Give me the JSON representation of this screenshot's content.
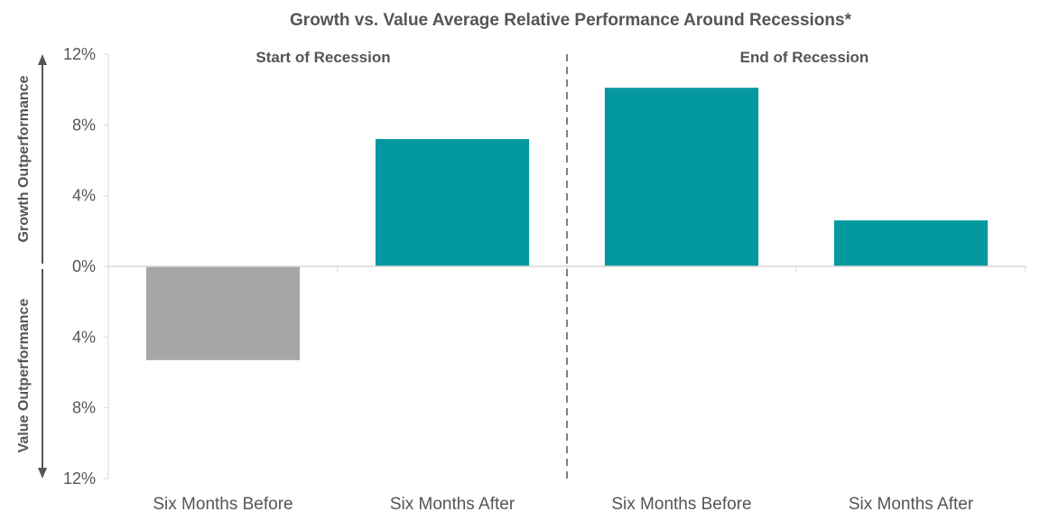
{
  "chart_data": {
    "type": "bar",
    "title": "Growth vs. Value Average Relative Performance Around Recessions*",
    "categories": [
      "Six Months Before",
      "Six Months After",
      "Six Months Before",
      "Six Months After"
    ],
    "values": [
      -5.3,
      7.2,
      10.1,
      2.6
    ],
    "ylim": [
      -12,
      12
    ],
    "yticks": [
      {
        "value": 12,
        "label": "12%"
      },
      {
        "value": 8,
        "label": "8%"
      },
      {
        "value": 4,
        "label": "4%"
      },
      {
        "value": 0,
        "label": "0%"
      },
      {
        "value": -4,
        "label": "4%"
      },
      {
        "value": -8,
        "label": "8%"
      },
      {
        "value": -12,
        "label": "12%"
      }
    ],
    "sections": [
      {
        "label": "Start of Recession"
      },
      {
        "label": "End of Recession"
      }
    ],
    "side_labels": {
      "upper": "Growth Outperformance",
      "lower": "Value Outperformance"
    },
    "colors": {
      "negative": "#a6a6a6",
      "positive": "#0499a1",
      "axis": "#d9d9d9",
      "text": "#555555",
      "divider": "#555555"
    }
  }
}
